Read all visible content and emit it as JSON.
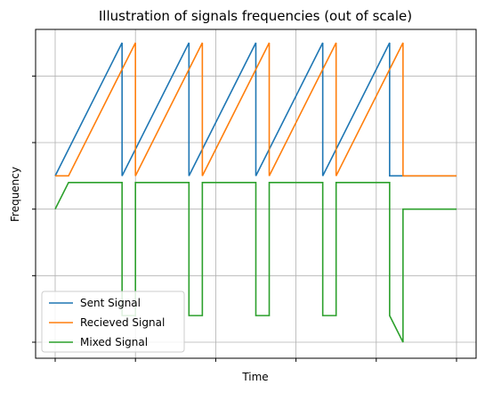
{
  "chart_data": {
    "type": "line",
    "title": "Illustration of signals frequencies (out of scale)",
    "xlabel": "Time",
    "ylabel": "Frequency",
    "xlim": [
      0,
      60
    ],
    "ylim": [
      -2.3,
      2.6
    ],
    "xticks": [
      0,
      12,
      24,
      36,
      48,
      60
    ],
    "yticks": [
      -2,
      -1,
      0,
      1,
      2
    ],
    "grid": true,
    "legend_position": "lower-left",
    "series": [
      {
        "name": "Sent Signal",
        "color": "#1f77b4",
        "x": [
          0,
          10,
          10,
          20,
          20,
          30,
          30,
          40,
          40,
          50,
          50,
          52,
          60
        ],
        "y": [
          0.5,
          2.5,
          0.5,
          2.5,
          0.5,
          2.5,
          0.5,
          2.5,
          0.5,
          2.5,
          0.5,
          0.5,
          0.5
        ]
      },
      {
        "name": "Recieved Signal",
        "color": "#ff7f0e",
        "x": [
          0,
          2,
          12,
          12,
          22,
          22,
          32,
          32,
          42,
          42,
          52,
          52,
          60
        ],
        "y": [
          0.5,
          0.5,
          2.5,
          0.5,
          2.5,
          0.5,
          2.5,
          0.5,
          2.5,
          0.5,
          2.5,
          0.5,
          0.5
        ]
      },
      {
        "name": "Mixed Signal",
        "color": "#2ca02c",
        "x": [
          0,
          2,
          10,
          10,
          12,
          12,
          20,
          20,
          22,
          22,
          30,
          30,
          32,
          32,
          40,
          40,
          42,
          42,
          50,
          50,
          52,
          52,
          60
        ],
        "y": [
          0,
          0.4,
          0.4,
          -1.6,
          -1.6,
          0.4,
          0.4,
          -1.6,
          -1.6,
          0.4,
          0.4,
          -1.6,
          -1.6,
          0.4,
          0.4,
          -1.6,
          -1.6,
          0.4,
          0.4,
          -1.6,
          -2.0,
          0,
          0
        ]
      }
    ]
  }
}
